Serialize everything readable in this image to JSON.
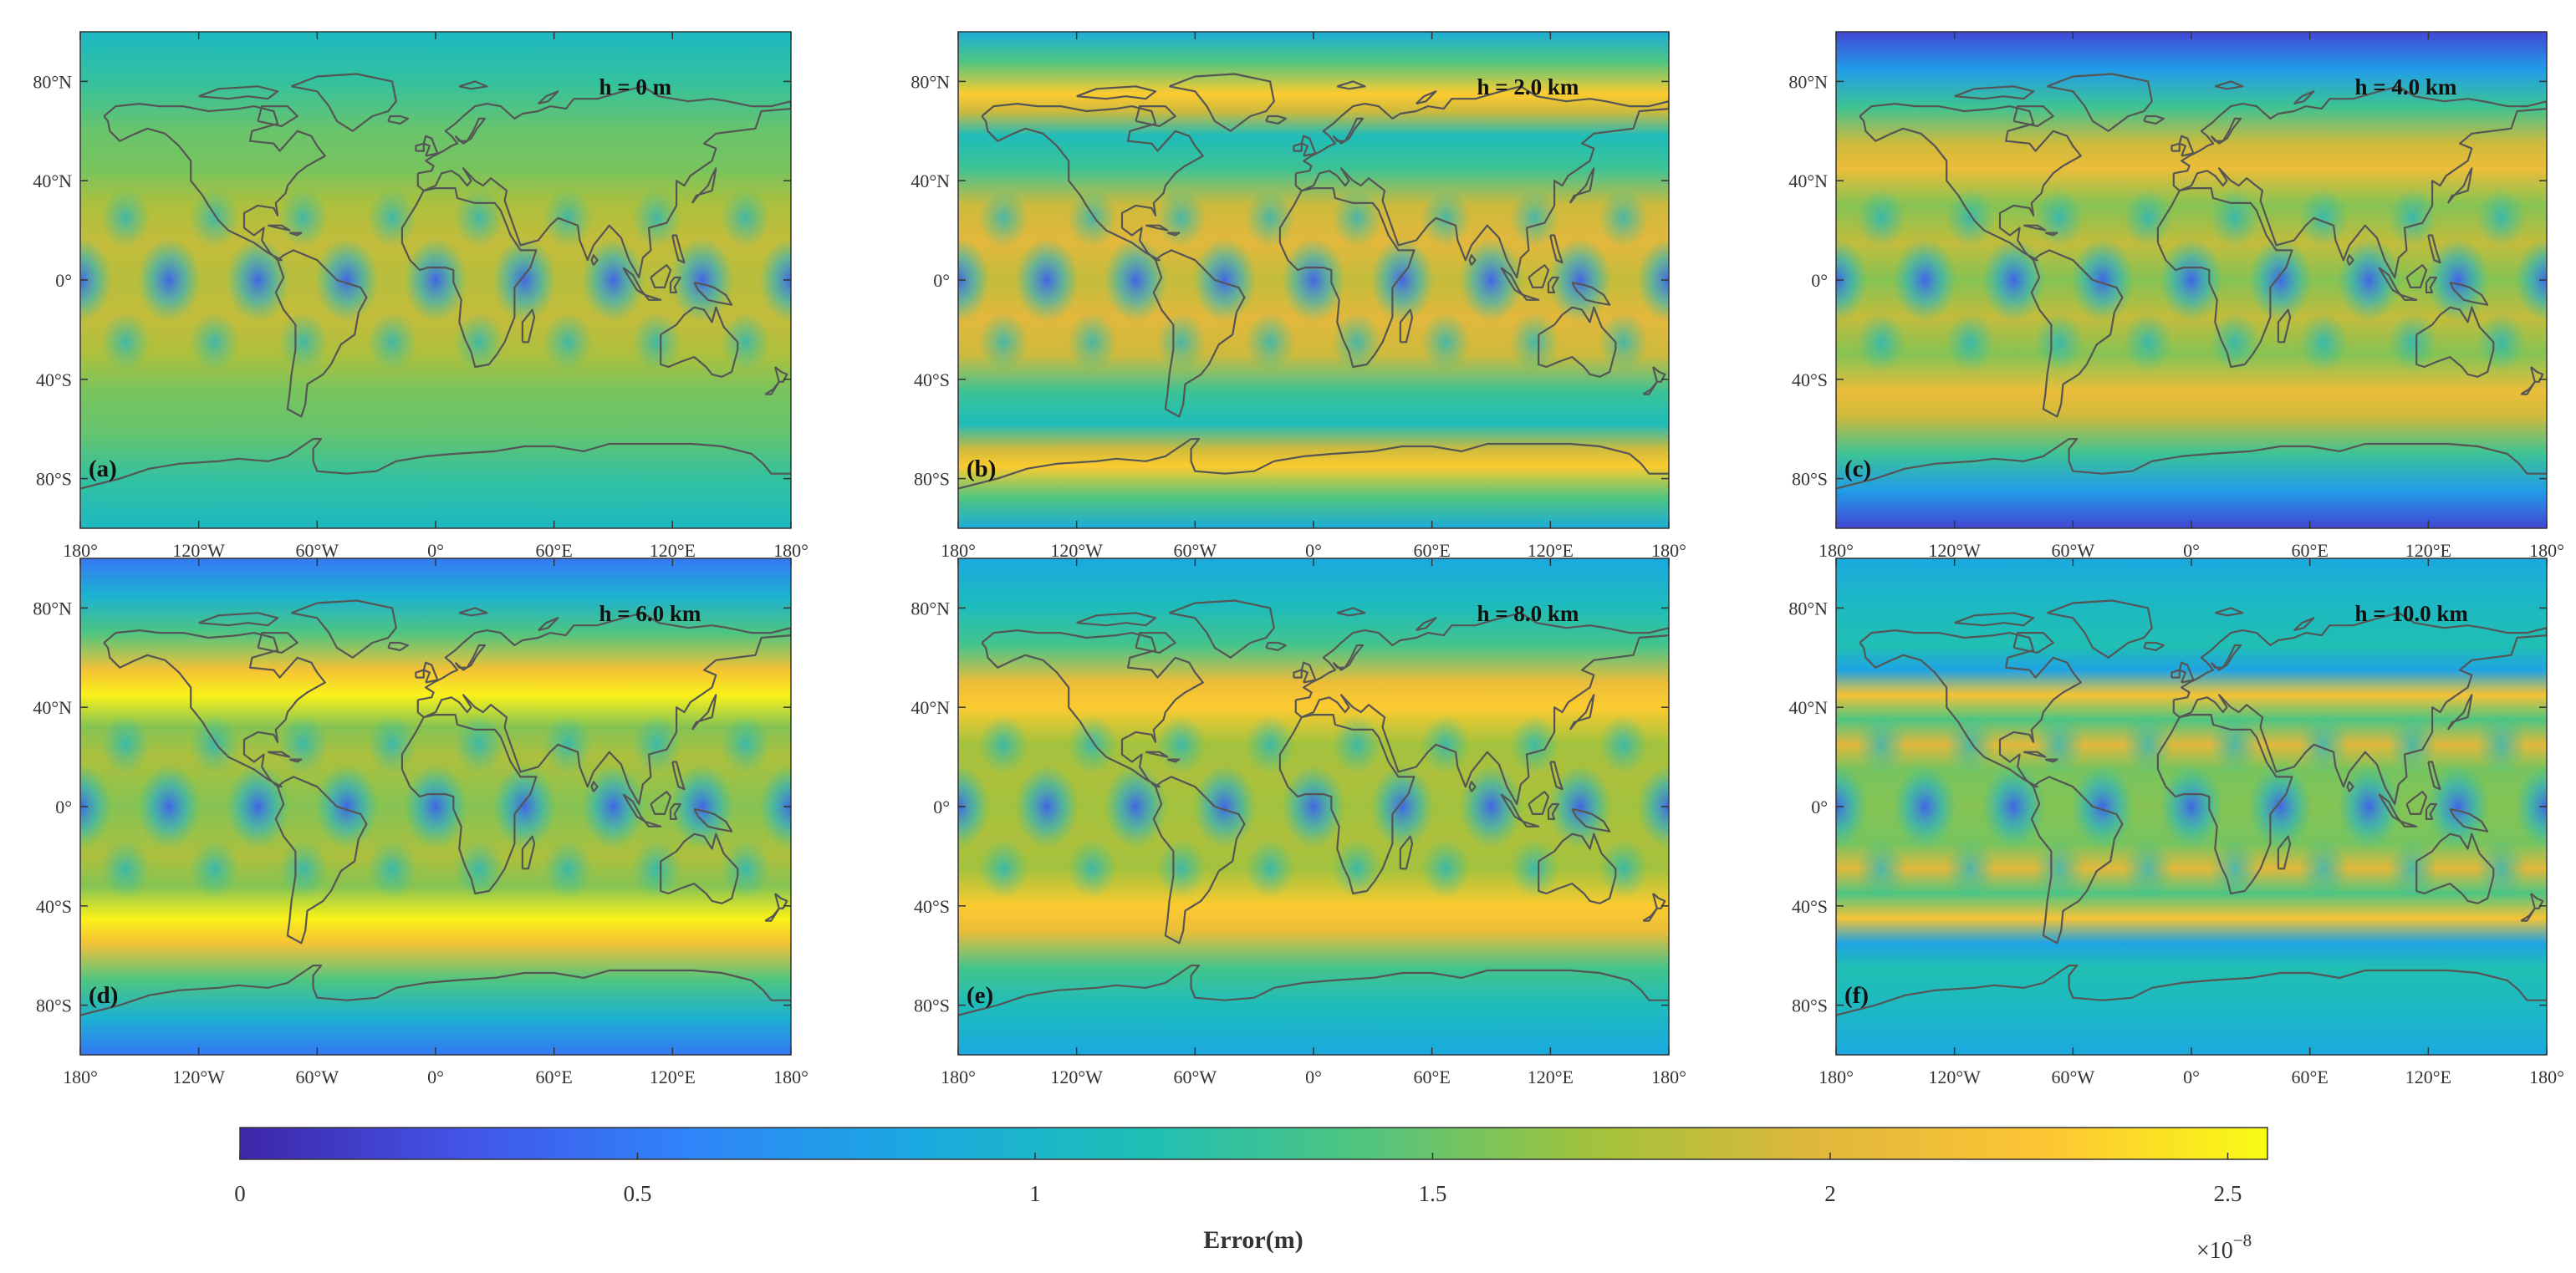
{
  "chart_data": {
    "type": "heatmap",
    "description_hidden": false,
    "x_ticks": [
      "180°",
      "120°W",
      "60°W",
      "0°",
      "60°E",
      "120°E",
      "180°"
    ],
    "x_tick_values": [
      -180,
      -120,
      -60,
      0,
      60,
      120,
      180
    ],
    "y_ticks": [
      "80°N",
      "40°N",
      "0°",
      "40°S",
      "80°S"
    ],
    "y_tick_values": [
      80,
      40,
      0,
      -40,
      -80
    ],
    "x_range": [
      -180,
      180
    ],
    "y_range": [
      -100,
      100
    ],
    "panels": [
      {
        "letter": "(a)",
        "label": "h = 0 m",
        "profile": {
          "lat": [
            -100,
            -80,
            -60,
            -45,
            -30,
            -15,
            0,
            15,
            30,
            45,
            60,
            80,
            100
          ],
          "val": [
            1.05,
            1.25,
            1.5,
            1.55,
            1.75,
            1.85,
            1.8,
            1.85,
            1.75,
            1.55,
            1.5,
            1.25,
            1.05
          ]
        }
      },
      {
        "letter": "(b)",
        "label": "h = 2.0 km",
        "profile": {
          "lat": [
            -100,
            -88,
            -75,
            -68,
            -58,
            -45,
            -30,
            -15,
            0,
            15,
            30,
            45,
            58,
            68,
            75,
            88,
            100
          ],
          "val": [
            0.9,
            1.4,
            2.3,
            1.9,
            1.1,
            1.3,
            1.9,
            2.0,
            1.85,
            2.0,
            1.9,
            1.3,
            1.1,
            1.9,
            2.3,
            1.4,
            0.9
          ]
        }
      },
      {
        "letter": "(c)",
        "label": "h = 4.0 km",
        "profile": {
          "lat": [
            -100,
            -85,
            -70,
            -55,
            -45,
            -30,
            -15,
            0,
            15,
            30,
            45,
            55,
            70,
            85,
            100
          ],
          "val": [
            0.2,
            0.75,
            1.3,
            1.9,
            2.1,
            1.6,
            1.85,
            1.6,
            1.85,
            1.6,
            2.1,
            1.9,
            1.3,
            0.75,
            0.2
          ]
        }
      },
      {
        "letter": "(d)",
        "label": "h = 6.0 km",
        "profile": {
          "lat": [
            -100,
            -85,
            -70,
            -55,
            -45,
            -32,
            -20,
            0,
            20,
            32,
            45,
            55,
            70,
            85,
            100
          ],
          "val": [
            0.5,
            0.95,
            1.4,
            2.2,
            2.5,
            1.6,
            1.75,
            1.6,
            1.75,
            1.6,
            2.5,
            2.2,
            1.4,
            0.95,
            0.5
          ]
        }
      },
      {
        "letter": "(e)",
        "label": "h = 8.0 km",
        "profile": {
          "lat": [
            -100,
            -80,
            -65,
            -50,
            -40,
            -25,
            -12,
            0,
            12,
            25,
            40,
            50,
            65,
            80,
            100
          ],
          "val": [
            0.85,
            1.1,
            1.35,
            2.1,
            2.3,
            1.7,
            1.75,
            1.7,
            1.75,
            1.7,
            2.3,
            2.1,
            1.35,
            1.1,
            0.85
          ]
        }
      },
      {
        "letter": "(f)",
        "label": "h = 10.0 km",
        "profile": {
          "lat": [
            -100,
            -80,
            -65,
            -55,
            -45,
            -35,
            -25,
            -15,
            0,
            15,
            25,
            35,
            45,
            55,
            65,
            80,
            100
          ],
          "val": [
            0.85,
            1.05,
            1.15,
            0.8,
            2.2,
            1.4,
            2.0,
            1.55,
            1.6,
            1.55,
            2.0,
            1.4,
            2.2,
            0.8,
            1.15,
            1.05,
            0.85
          ]
        }
      }
    ],
    "colorbar": {
      "ticks": [
        "0",
        "0.5",
        "1",
        "1.5",
        "2",
        "2.5"
      ],
      "tick_values": [
        0,
        0.5,
        1,
        1.5,
        2,
        2.5
      ],
      "range": [
        0,
        2.55
      ],
      "label": "Error(m)",
      "multiplier_base": "×10",
      "multiplier_exp": "−8",
      "colormap": [
        "#3e26a8",
        "#4354e8",
        "#2f85f9",
        "#1ba9e0",
        "#1ebfb6",
        "#51c57e",
        "#a2c23d",
        "#e0b73c",
        "#fcc534",
        "#f9fb15"
      ]
    }
  }
}
